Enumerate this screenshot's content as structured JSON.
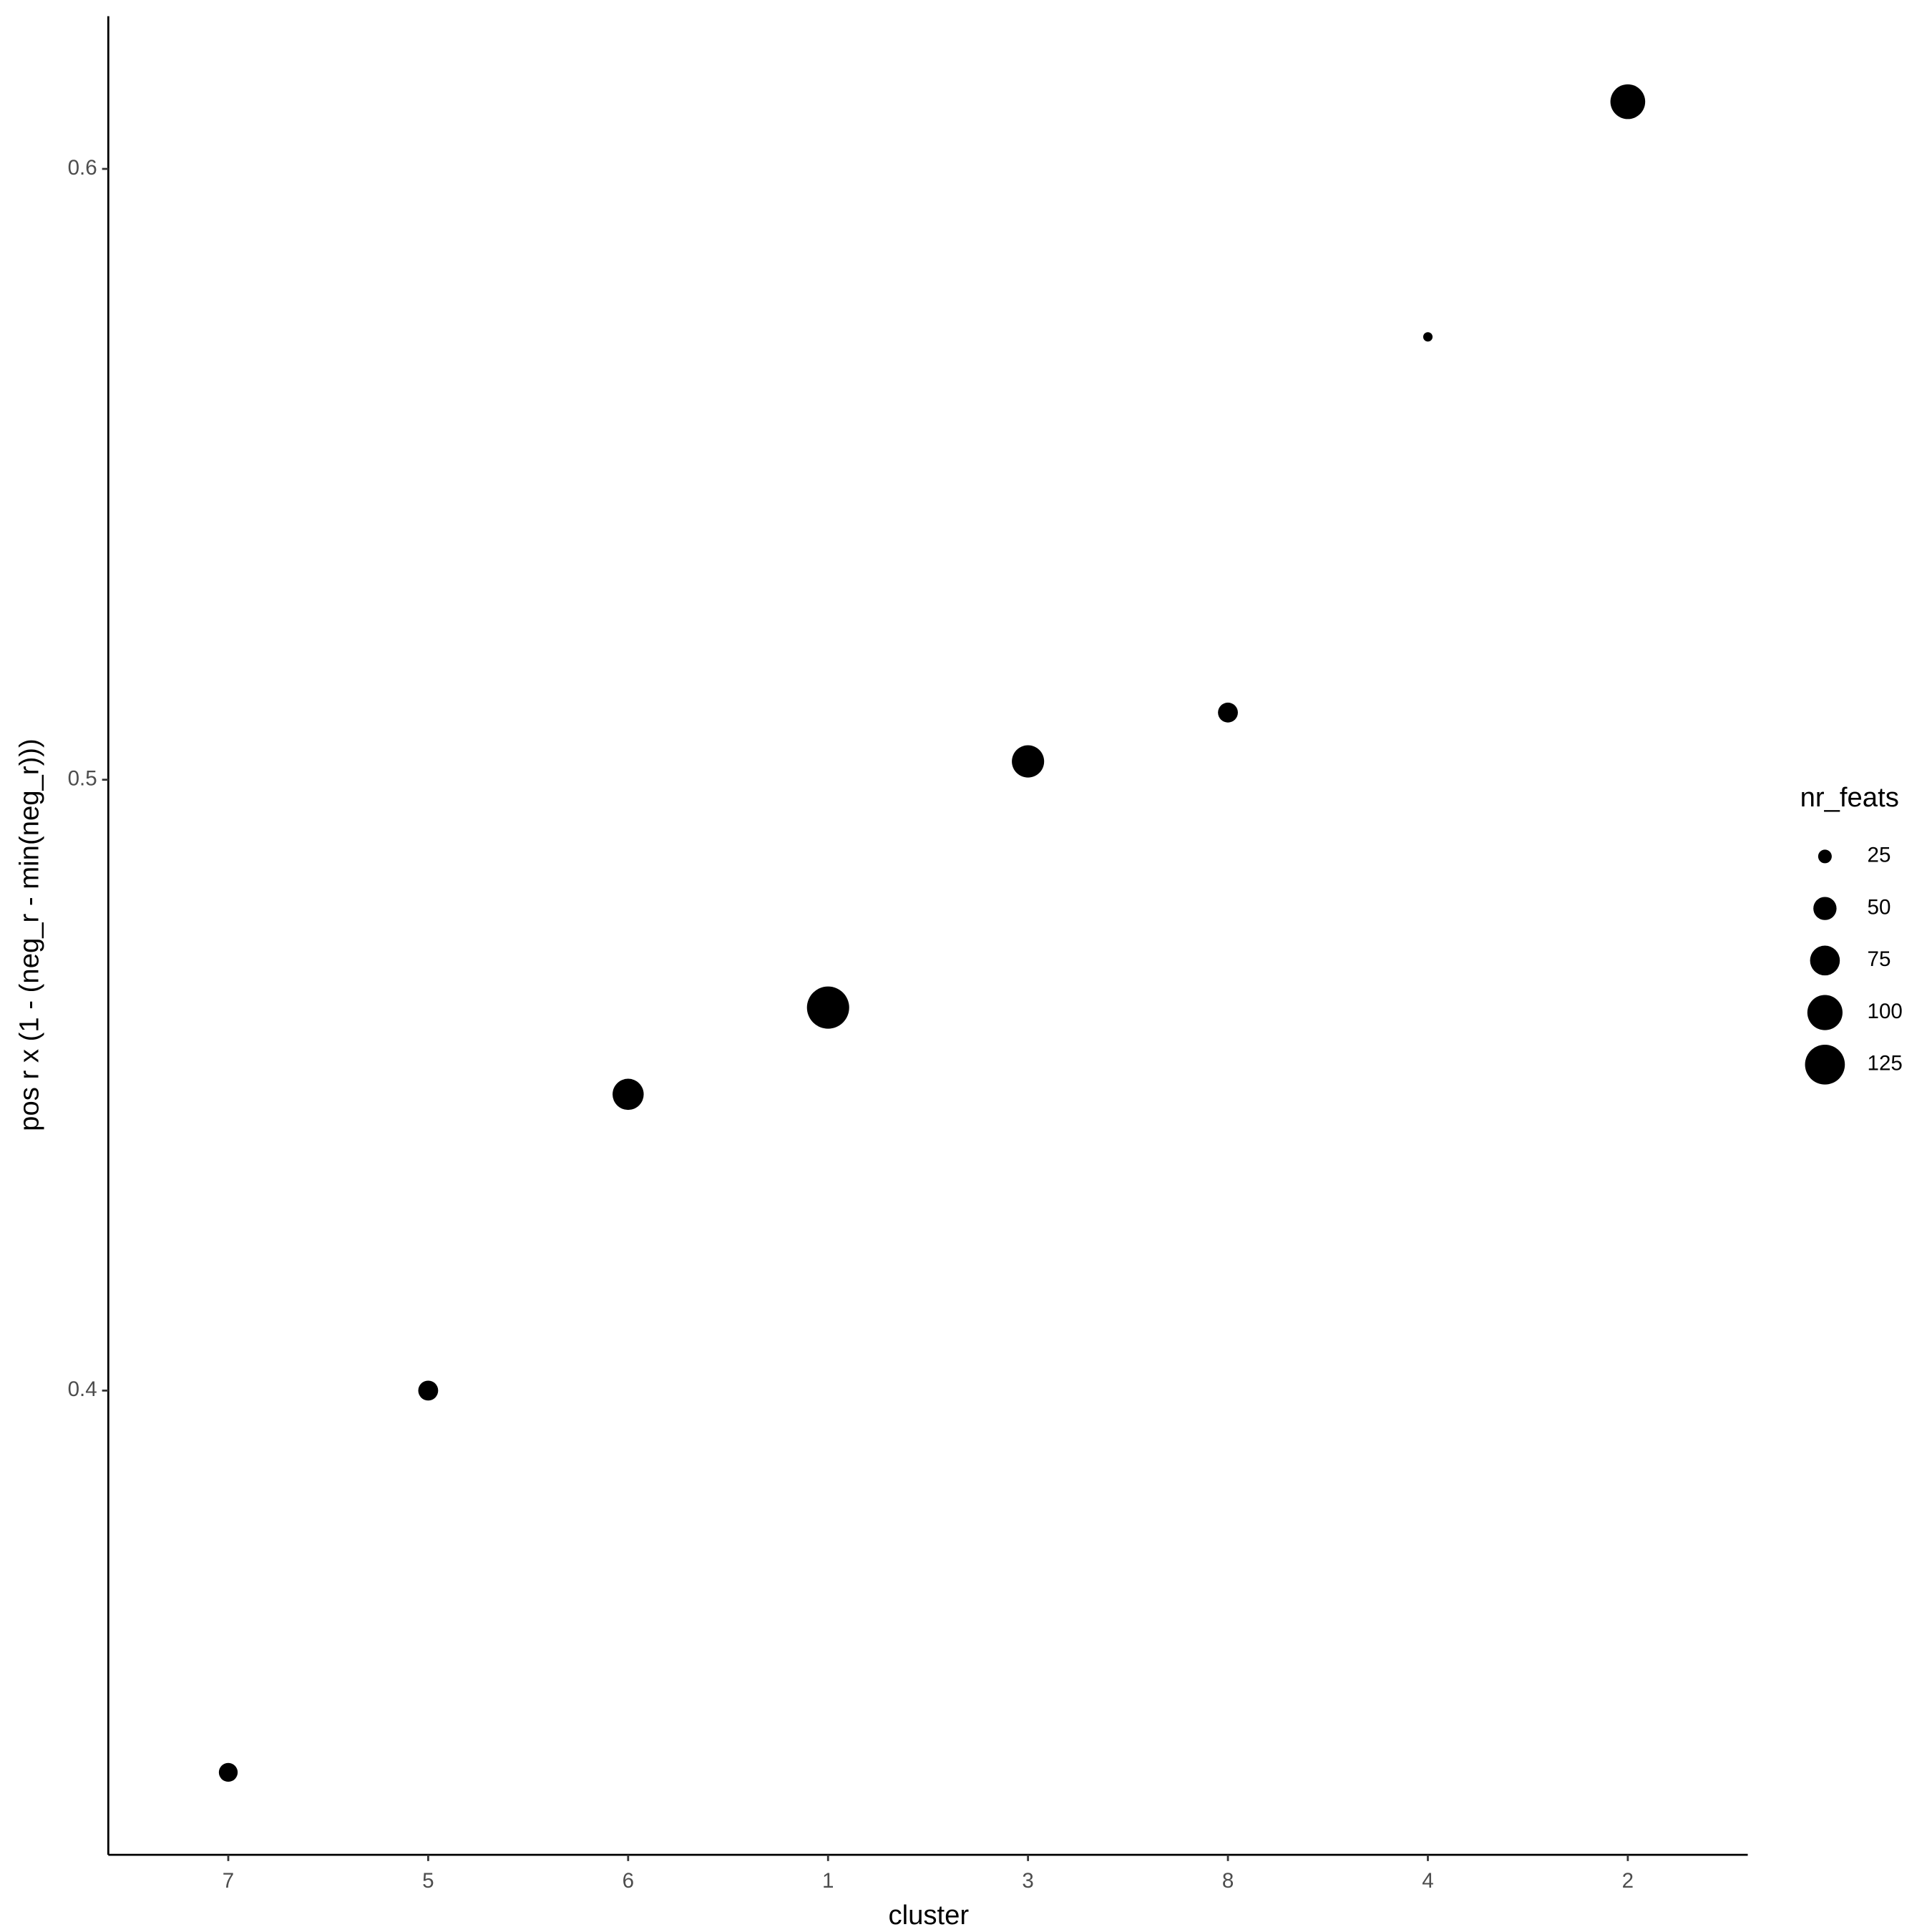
{
  "chart_data": {
    "type": "scatter",
    "x_label": "cluster",
    "y_label": "pos r x (1 - (neg_r - min(neg_r)))",
    "categories": [
      "7",
      "5",
      "6",
      "1",
      "3",
      "8",
      "4",
      "2"
    ],
    "values": [
      0.3375,
      0.4,
      0.4485,
      0.4627,
      0.503,
      0.511,
      0.5725,
      0.611
    ],
    "sizes": [
      37,
      40,
      81,
      139,
      86,
      40,
      18,
      98
    ],
    "color": "#000000",
    "ylim": [
      0.324,
      0.625
    ],
    "yticks": [
      0.4,
      0.5,
      0.6
    ],
    "size_legend": {
      "title": "nr_feats",
      "values": [
        25,
        50,
        75,
        100,
        125
      ]
    }
  }
}
